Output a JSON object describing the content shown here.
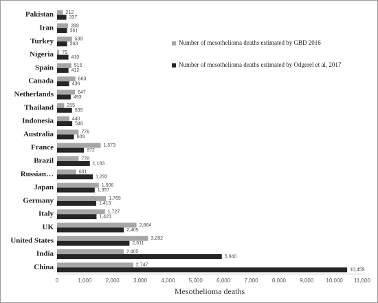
{
  "chart_data": {
    "type": "bar",
    "orientation": "horizontal",
    "x_label": "Mesothelioma deaths",
    "categories": [
      "Pakistan",
      "Iran",
      "Turkey",
      "Nigeria",
      "Spain",
      "Canada",
      "Netherlands",
      "Thailand",
      "Indonesia",
      "Australia",
      "France",
      "Brazil",
      "Russian…",
      "Japan",
      "Germany",
      "Italy",
      "UK",
      "United States",
      "India",
      "China"
    ],
    "series": [
      {
        "name": "Number of mesothelioma deaths estimated by GBD 2016",
        "color": "#a6a6a6",
        "values": [
          212,
          399,
          539,
          79,
          515,
          663,
          647,
          255,
          440,
          776,
          1573,
          778,
          691,
          1506,
          1765,
          1727,
          2864,
          3282,
          2405,
          2747
        ],
        "value_labels": [
          "212",
          "399",
          "539",
          "79",
          "515",
          "663",
          "647",
          "255",
          "440",
          "776",
          "1,573",
          "778",
          "691",
          "1,506",
          "1,765",
          "1,727",
          "2,864",
          "3,282",
          "2,405",
          "2,747"
        ]
      },
      {
        "name": "Number of mesothelioma deaths estimated by Odgerel et al, 2017",
        "color": "#262626",
        "values": [
          337,
          361,
          363,
          410,
          412,
          436,
          493,
          539,
          548,
          609,
          972,
          1183,
          1292,
          1357,
          1413,
          1423,
          2405,
          2611,
          5940,
          10459
        ],
        "value_labels": [
          "337",
          "361",
          "363",
          "410",
          "412",
          "436",
          "493",
          "539",
          "548",
          "609",
          "972",
          "1,183",
          "1,292",
          "1,357",
          "1,413",
          "1,423",
          "2,405",
          "2,611",
          "5,940",
          "10,459"
        ]
      }
    ],
    "xlim": [
      0,
      11000
    ],
    "xticks": [
      0,
      {
        "value": 1000,
        "label": "1,000"
      },
      {
        "value": 2000,
        "label": "2,000"
      },
      {
        "value": 3000,
        "label": "3,000"
      },
      {
        "value": 4000,
        "label": "4,000"
      },
      {
        "value": 5000,
        "label": "5,000"
      },
      {
        "value": 6000,
        "label": "6,000"
      },
      {
        "value": 7000,
        "label": "7,000"
      },
      {
        "value": 8000,
        "label": "8,000"
      },
      {
        "value": 9000,
        "label": "9,000"
      },
      {
        "value": 10000,
        "label": "10,000"
      },
      {
        "value": 11000,
        "label": "11,000"
      }
    ],
    "grid": false,
    "legend": "upper right"
  }
}
